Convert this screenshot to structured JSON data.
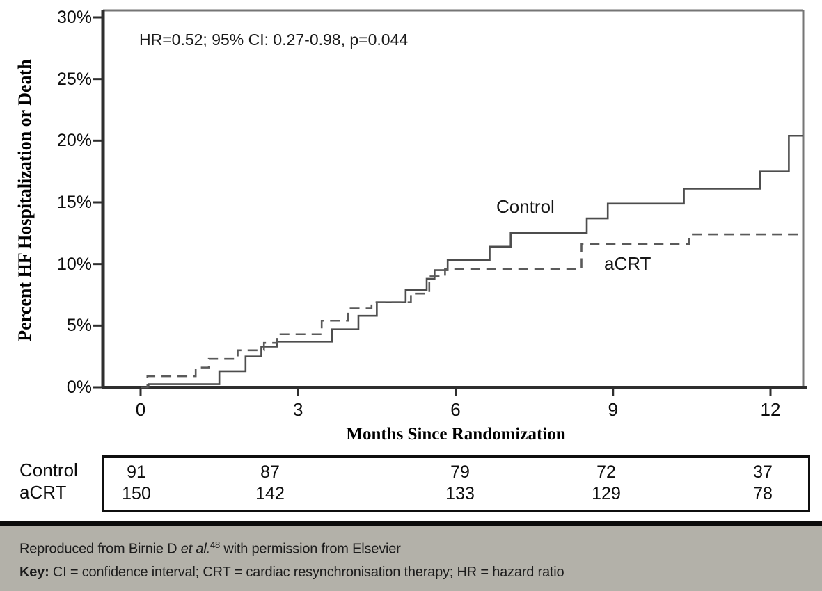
{
  "chart_data": {
    "type": "line",
    "subtype": "kaplan-meier-step",
    "annotation": "HR=0.52; 95% CI: 0.27-0.98, p=0.044",
    "xlabel": "Months Since Randomization",
    "ylabel": "Percent HF Hospitalization or Death",
    "xlim": [
      0,
      12.65
    ],
    "ylim": [
      0,
      30
    ],
    "x_ticks": [
      0,
      3,
      6,
      9,
      12
    ],
    "y_ticks": [
      0,
      5,
      10,
      15,
      20,
      25,
      30
    ],
    "y_tick_suffix": "%",
    "grid": false,
    "legend_position": "inline-labels",
    "series": [
      {
        "name": "Control",
        "style": "solid",
        "color": "#4d4d4d",
        "points": [
          [
            0,
            0
          ],
          [
            0.15,
            0.25
          ],
          [
            1.5,
            1.3
          ],
          [
            2.0,
            2.5
          ],
          [
            2.3,
            3.3
          ],
          [
            2.6,
            3.7
          ],
          [
            3.65,
            4.7
          ],
          [
            4.15,
            5.8
          ],
          [
            4.5,
            6.9
          ],
          [
            5.05,
            7.9
          ],
          [
            5.45,
            8.8
          ],
          [
            5.6,
            9.5
          ],
          [
            5.85,
            10.3
          ],
          [
            6.65,
            11.4
          ],
          [
            7.05,
            12.5
          ],
          [
            8.5,
            13.7
          ],
          [
            8.9,
            14.9
          ],
          [
            10.35,
            16.1
          ],
          [
            11.8,
            17.5
          ],
          [
            12.35,
            20.4
          ]
        ]
      },
      {
        "name": "aCRT",
        "style": "dashed",
        "color": "#5a5a5a",
        "points": [
          [
            0,
            0
          ],
          [
            0.13,
            0.9
          ],
          [
            1.05,
            1.6
          ],
          [
            1.3,
            2.3
          ],
          [
            1.85,
            3.0
          ],
          [
            2.35,
            3.6
          ],
          [
            2.6,
            4.3
          ],
          [
            3.45,
            5.4
          ],
          [
            3.95,
            6.4
          ],
          [
            4.4,
            6.9
          ],
          [
            5.15,
            7.6
          ],
          [
            5.5,
            9.0
          ],
          [
            5.8,
            9.6
          ],
          [
            8.4,
            11.6
          ],
          [
            10.45,
            12.4
          ]
        ]
      }
    ]
  },
  "risk_table": {
    "rows": [
      {
        "label": "Control",
        "values": [
          "91",
          "87",
          "79",
          "72",
          "37"
        ]
      },
      {
        "label": "aCRT",
        "values": [
          "150",
          "142",
          "133",
          "129",
          "78"
        ]
      }
    ]
  },
  "footer": {
    "line1_prefix": "Reproduced from Birnie D ",
    "line1_italic": "et al.",
    "line1_sup": "48",
    "line1_suffix": " with permission from Elsevier",
    "key_label": "Key:",
    "key_text": " CI = confidence interval; CRT = cardiac resynchronisation therapy; HR = hazard ratio"
  },
  "colors": {
    "footer_background": "#b3b1a9",
    "footer_top_bar": "#0c0c0c",
    "axis_dark": "#2e2e2e",
    "frame_gray": "#757575"
  }
}
